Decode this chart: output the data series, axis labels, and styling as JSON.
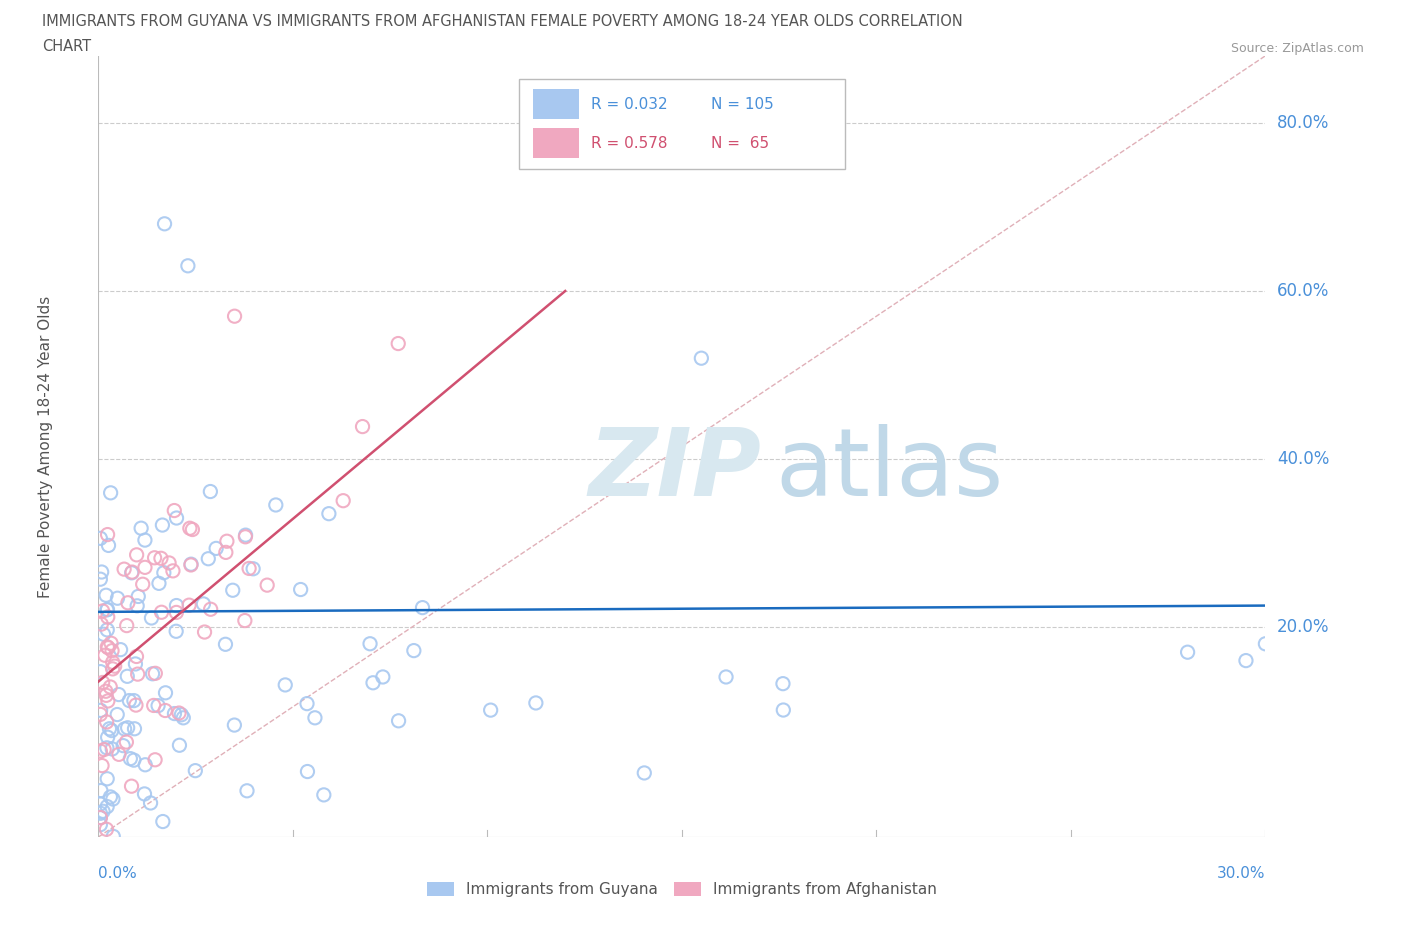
{
  "title_line1": "IMMIGRANTS FROM GUYANA VS IMMIGRANTS FROM AFGHANISTAN FEMALE POVERTY AMONG 18-24 YEAR OLDS CORRELATION",
  "title_line2": "CHART",
  "source": "Source: ZipAtlas.com",
  "xlabel_bottom_left": "0.0%",
  "xlabel_bottom_right": "30.0%",
  "ylabel": "Female Poverty Among 18-24 Year Olds",
  "ytick_labels": [
    "20.0%",
    "40.0%",
    "60.0%",
    "80.0%"
  ],
  "ytick_values": [
    0.2,
    0.4,
    0.6,
    0.8
  ],
  "xmin": 0.0,
  "xmax": 0.3,
  "ymin": -0.05,
  "ymax": 0.88,
  "watermark_zip": "ZIP",
  "watermark_atlas": "atlas",
  "legend_guyana_R": "0.032",
  "legend_guyana_N": "105",
  "legend_afghanistan_R": "0.578",
  "legend_afghanistan_N": "65",
  "guyana_color": "#a8c8f0",
  "afghanistan_color": "#f0a8c0",
  "guyana_line_color": "#1a6bbf",
  "afghanistan_line_color": "#d05070",
  "ref_line_color": "#e0b0b8",
  "text_color_blue": "#4a90d9",
  "text_color_dark": "#333333",
  "title_color": "#555555",
  "grid_color": "#cccccc",
  "axis_color": "#bbbbbb",
  "guyana_line_intercept": 0.218,
  "guyana_line_slope": 0.025,
  "afghanistan_line_x0": 0.0,
  "afghanistan_line_y0": 0.135,
  "afghanistan_line_x1": 0.12,
  "afghanistan_line_y1": 0.6
}
